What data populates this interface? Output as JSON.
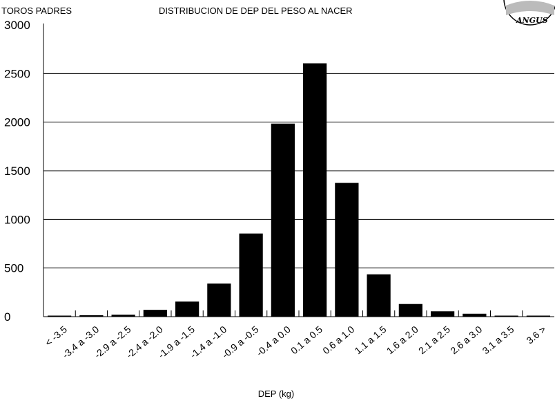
{
  "chart_data": {
    "type": "bar",
    "header_left": "TOROS PADRES",
    "title": "DISTRIBUCION DE DEP DEL PESO AL NACER",
    "xlabel": "DEP (kg)",
    "ylabel": "",
    "ylim": [
      0,
      3000
    ],
    "y_ticks": [
      0,
      500,
      1000,
      1500,
      2000,
      2500,
      3000
    ],
    "y_tick_labels": [
      "0",
      "500",
      "1000",
      "1500",
      "2000",
      "2500",
      "3000"
    ],
    "grid": true,
    "categories": [
      "< -3.5",
      "-3.4 a -3.0",
      "-2.9 a -2.5",
      "-2.4 a -2.0",
      "-1.9 a -1.5",
      "-1.4 a -1.0",
      "-0.9 a -0.5",
      "-0.4 a 0.0",
      "0.1 a 0.5",
      "0.6 a 1.0",
      "1.1 a 1.5",
      "1.6 a 2.0",
      "2.1 a 2.5",
      "2.6 a 3.0",
      "3.1 a 3.5",
      "3.6 >"
    ],
    "values": [
      5,
      15,
      20,
      70,
      155,
      340,
      855,
      1985,
      2605,
      1375,
      435,
      130,
      55,
      30,
      10,
      3
    ],
    "bar_color": "#000000",
    "logo_text": "ANGUS"
  }
}
